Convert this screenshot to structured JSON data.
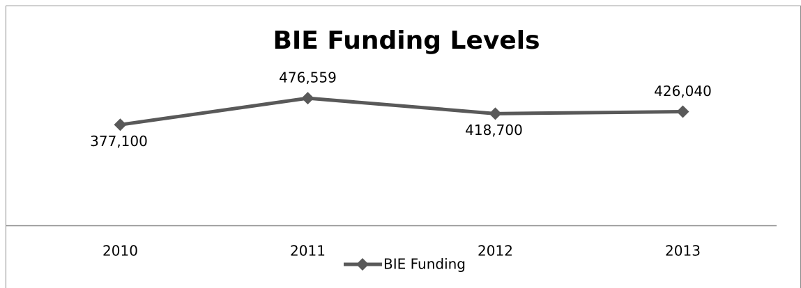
{
  "chart_data": {
    "type": "line",
    "title": "BIE Funding Levels",
    "categories": [
      "2010",
      "2011",
      "2012",
      "2013"
    ],
    "series": [
      {
        "name": "BIE Funding",
        "color": "#595959",
        "values": [
          377100,
          476559,
          418700,
          426040
        ],
        "value_labels": [
          "377,100",
          "476,559",
          "418,700",
          "426,040"
        ]
      }
    ],
    "ylim": [
      0,
      800000
    ],
    "legend": "bottom"
  }
}
